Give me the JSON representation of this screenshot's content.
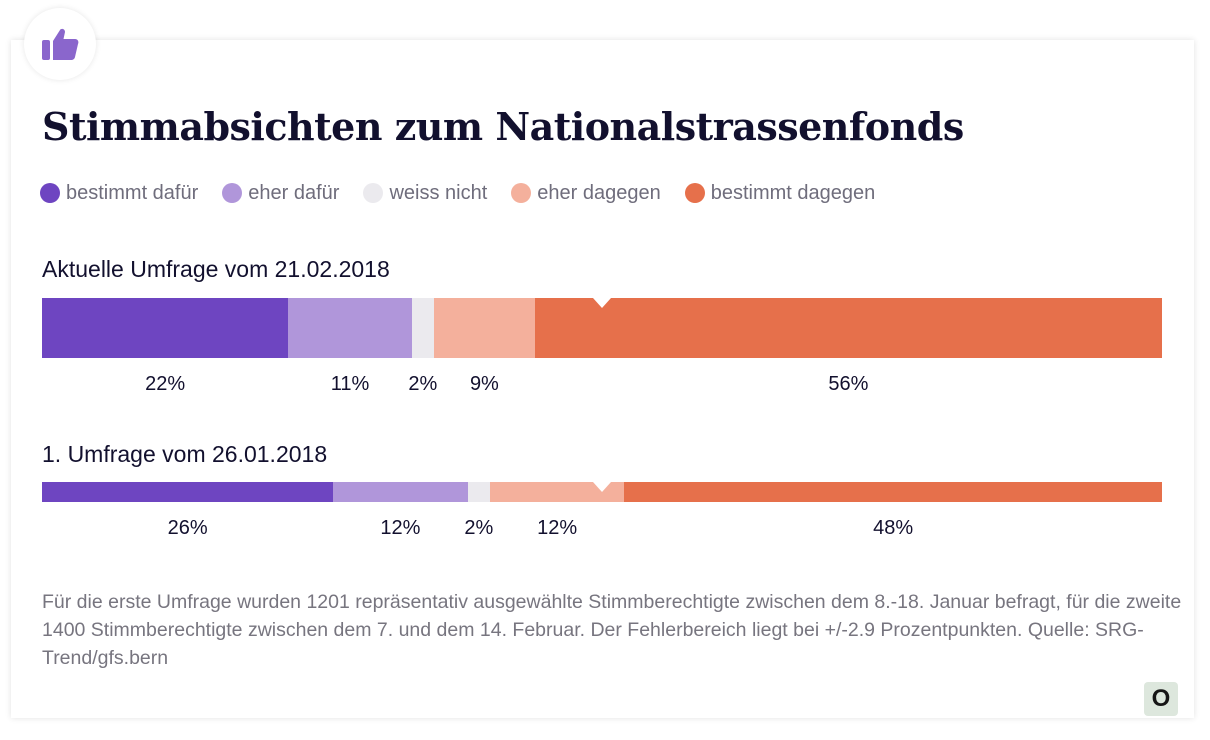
{
  "chart_data": {
    "type": "bar",
    "orientation": "horizontal-stacked-100",
    "title": "Stimmabsichten zum Nationalstrassenfonds",
    "legend": [
      {
        "label": "bestimmt dafür",
        "color": "#6e45c1"
      },
      {
        "label": "eher dafür",
        "color": "#b096da"
      },
      {
        "label": "weiss nicht",
        "color": "#ebeaee"
      },
      {
        "label": "eher dagegen",
        "color": "#f4b09c"
      },
      {
        "label": "bestimmt dagegen",
        "color": "#e6704b"
      }
    ],
    "legend_placement": "top-left",
    "marker_at": 50,
    "series": [
      {
        "name": "Aktuelle Umfrage vom 21.02.2018",
        "values": [
          22,
          11,
          2,
          9,
          56
        ],
        "labels": [
          "22%",
          "11%",
          "2%",
          "9%",
          "56%"
        ]
      },
      {
        "name": "1. Umfrage vom 26.01.2018",
        "values": [
          26,
          12,
          2,
          12,
          48
        ],
        "labels": [
          "26%",
          "12%",
          "2%",
          "12%",
          "48%"
        ]
      }
    ]
  },
  "footnote": "Für die erste Umfrage wurden 1201 repräsentativ ausgewählte Stimmberechtigte zwischen dem 8.-18. Januar befragt, für die zweite 1400 Stimmberechtigte zwischen dem 7. und dem 14. Februar. Der Fehlerbereich liegt bei +/-2.9 Prozentpunkten. Quelle: SRG-Trend/gfs.bern",
  "badge_icon": "thumbs-up-icon",
  "badge_icon_color": "#8a66cc",
  "brand_logo_text": "O"
}
